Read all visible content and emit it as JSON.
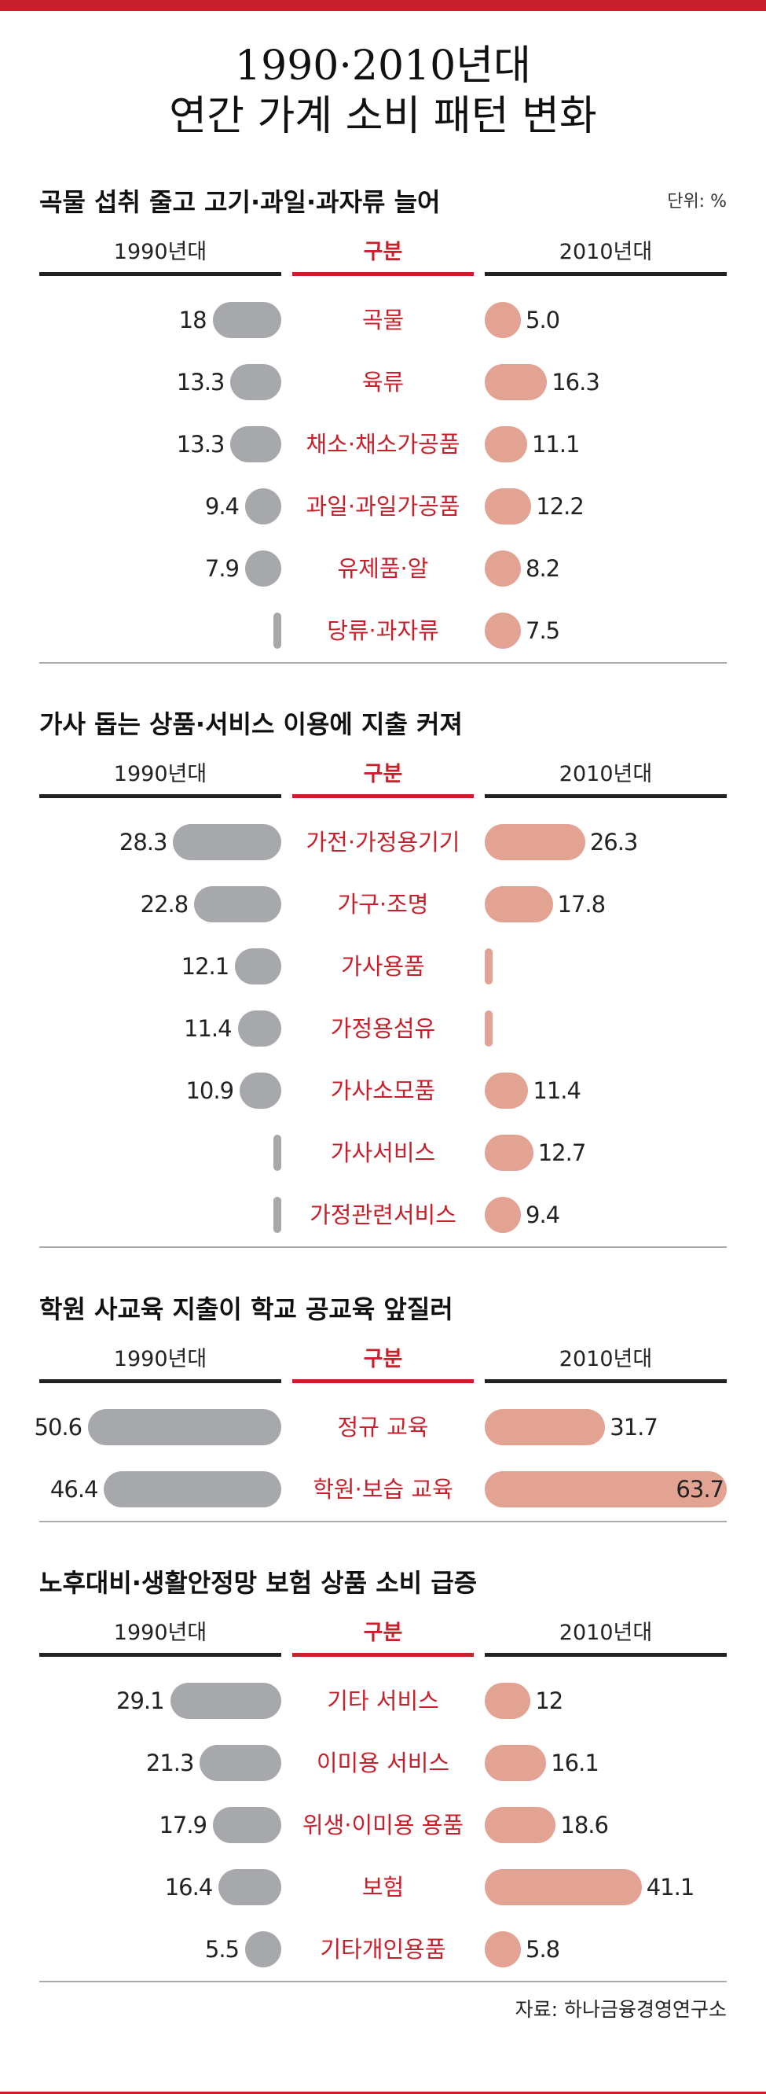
{
  "page": {
    "title_line1": "1990·2010년대",
    "title_line2": "연간 가계 소비 패턴 변화",
    "source": "자료: 하나금융경영연구소",
    "accent_color": "#c8202b",
    "old_bar_color": "#a7a8ab",
    "new_bar_color": "#e2a392"
  },
  "chart_data": [
    {
      "type": "bar",
      "title": "곡물 섭취 줄고 고기·과일·과자류 늘어",
      "unit_label": "단위: %",
      "header_left": "1990년대",
      "header_mid": "구분",
      "header_right": "2010년대",
      "series": [
        {
          "name": "1990년대",
          "values": [
            18,
            13.3,
            13.3,
            9.4,
            7.9,
            null
          ],
          "labels": [
            "18",
            "13.3",
            "13.3",
            "9.4",
            "7.9",
            ""
          ]
        },
        {
          "name": "2010년대",
          "values": [
            5.0,
            16.3,
            11.1,
            12.2,
            8.2,
            7.5
          ],
          "labels": [
            "5.0",
            "16.3",
            "11.1",
            "12.2",
            "8.2",
            "7.5"
          ]
        }
      ],
      "categories": [
        "곡물",
        "육류",
        "채소·채소가공품",
        "과일·과일가공품",
        "유제품·알",
        "당류·과자류"
      ]
    },
    {
      "type": "bar",
      "title": "가사 돕는 상품·서비스 이용에 지출 커져",
      "unit_label": "",
      "header_left": "1990년대",
      "header_mid": "구분",
      "header_right": "2010년대",
      "series": [
        {
          "name": "1990년대",
          "values": [
            28.3,
            22.8,
            12.1,
            11.4,
            10.9,
            null,
            null
          ],
          "labels": [
            "28.3",
            "22.8",
            "12.1",
            "11.4",
            "10.9",
            "",
            ""
          ]
        },
        {
          "name": "2010년대",
          "values": [
            26.3,
            17.8,
            null,
            null,
            11.4,
            12.7,
            9.4
          ],
          "labels": [
            "26.3",
            "17.8",
            "",
            "",
            "11.4",
            "12.7",
            "9.4"
          ]
        }
      ],
      "categories": [
        "가전·가정용기기",
        "가구·조명",
        "가사용품",
        "가정용섬유",
        "가사소모품",
        "가사서비스",
        "가정관련서비스"
      ]
    },
    {
      "type": "bar",
      "title": "학원 사교육 지출이 학교 공교육 앞질러",
      "unit_label": "",
      "header_left": "1990년대",
      "header_mid": "구분",
      "header_right": "2010년대",
      "series": [
        {
          "name": "1990년대",
          "values": [
            50.6,
            46.4
          ],
          "labels": [
            "50.6",
            "46.4"
          ]
        },
        {
          "name": "2010년대",
          "values": [
            31.7,
            63.7
          ],
          "labels": [
            "31.7",
            "63.7"
          ]
        }
      ],
      "categories": [
        "정규 교육",
        "학원·보습 교육"
      ]
    },
    {
      "type": "bar",
      "title": "노후대비·생활안정망 보험 상품 소비 급증",
      "unit_label": "",
      "header_left": "1990년대",
      "header_mid": "구분",
      "header_right": "2010년대",
      "series": [
        {
          "name": "1990년대",
          "values": [
            29.1,
            21.3,
            17.9,
            16.4,
            5.5
          ],
          "labels": [
            "29.1",
            "21.3",
            "17.9",
            "16.4",
            "5.5"
          ]
        },
        {
          "name": "2010년대",
          "values": [
            12,
            16.1,
            18.6,
            41.1,
            5.8
          ],
          "labels": [
            "12",
            "16.1",
            "18.6",
            "41.1",
            "5.8"
          ]
        }
      ],
      "categories": [
        "기타 서비스",
        "이미용 서비스",
        "위생·이미용 용품",
        "보험",
        "기타개인용품"
      ]
    }
  ]
}
